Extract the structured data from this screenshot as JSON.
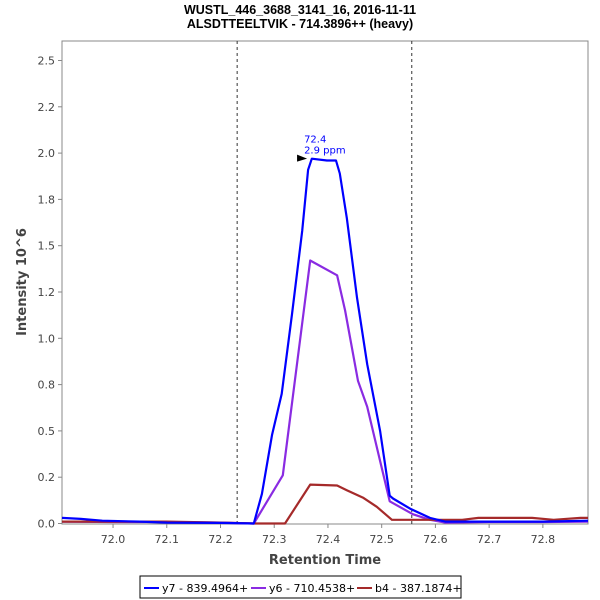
{
  "chart_data": {
    "type": "line",
    "title": "WUSTL_446_3688_3141_16, 2016-11-11",
    "subtitle": "ALSDTTEELTVIK - 714.3896++ (heavy)",
    "xlabel": "Retention Time",
    "ylabel": "Intensity 10^6",
    "xlim": [
      71.905,
      72.884
    ],
    "ylim": [
      0,
      2.6
    ],
    "x_ticks": [
      72.0,
      72.1,
      72.2,
      72.3,
      72.4,
      72.5,
      72.6,
      72.7,
      72.8
    ],
    "x_tick_labels": [
      "72.0",
      "72.1",
      "72.2",
      "72.3",
      "72.4",
      "72.5",
      "72.6",
      "72.7",
      "72.8"
    ],
    "y_ticks": [
      0,
      0.25,
      0.5,
      0.75,
      1.0,
      1.25,
      1.5,
      1.75,
      2.0,
      2.25,
      2.5
    ],
    "y_tick_labels": [
      "0.0",
      "0.2",
      "0.5",
      "0.8",
      "1.0",
      "1.2",
      "1.5",
      "1.8",
      "2.0",
      "2.2",
      "2.5"
    ],
    "grid": false,
    "integration_bounds": [
      72.231,
      72.556
    ],
    "peak_annotation": {
      "x": 72.363,
      "y": 1.97,
      "rt_label": "72.4",
      "ppm_label": "2.9 ppm",
      "color": "#0000ff"
    },
    "legend_position": "bottom",
    "series": [
      {
        "name": "y7 - 839.4964+",
        "color": "#0000ff",
        "x": [
          71.905,
          71.94,
          71.98,
          72.05,
          72.1,
          72.2,
          72.262,
          72.277,
          72.296,
          72.314,
          72.333,
          72.352,
          72.363,
          72.37,
          72.398,
          72.415,
          72.422,
          72.435,
          72.454,
          72.473,
          72.497,
          72.515,
          72.521,
          72.553,
          72.59,
          72.618,
          72.7,
          72.8,
          72.884
        ],
        "y": [
          0.03,
          0.025,
          0.015,
          0.01,
          0.005,
          0.003,
          0,
          0.16,
          0.48,
          0.7,
          1.13,
          1.58,
          1.91,
          1.97,
          1.96,
          1.96,
          1.89,
          1.65,
          1.22,
          0.86,
          0.5,
          0.15,
          0.135,
          0.08,
          0.03,
          0.01,
          0.01,
          0.01,
          0.015
        ]
      },
      {
        "name": "y6 - 710.4538+",
        "color": "#8a2be2",
        "x": [
          71.905,
          72.0,
          72.1,
          72.2,
          72.262,
          72.316,
          72.367,
          72.417,
          72.432,
          72.456,
          72.473,
          72.515,
          72.558,
          72.59,
          72.618,
          72.7,
          72.8,
          72.884
        ],
        "y": [
          0.01,
          0.008,
          0.008,
          0.005,
          0,
          0.26,
          1.42,
          1.34,
          1.15,
          0.77,
          0.63,
          0.12,
          0.05,
          0.02,
          0.005,
          0.008,
          0.008,
          0.01
        ]
      },
      {
        "name": "b4 - 387.1874+",
        "color": "#a52a2a",
        "x": [
          71.905,
          72.1,
          72.2,
          72.262,
          72.32,
          72.367,
          72.417,
          72.435,
          72.465,
          72.491,
          72.519,
          72.6,
          72.65,
          72.68,
          72.78,
          72.82,
          72.87,
          72.884
        ],
        "y": [
          0.01,
          0.01,
          0.005,
          0,
          0,
          0.21,
          0.205,
          0.18,
          0.14,
          0.09,
          0.02,
          0.02,
          0.02,
          0.03,
          0.03,
          0.02,
          0.03,
          0.03
        ]
      }
    ]
  }
}
